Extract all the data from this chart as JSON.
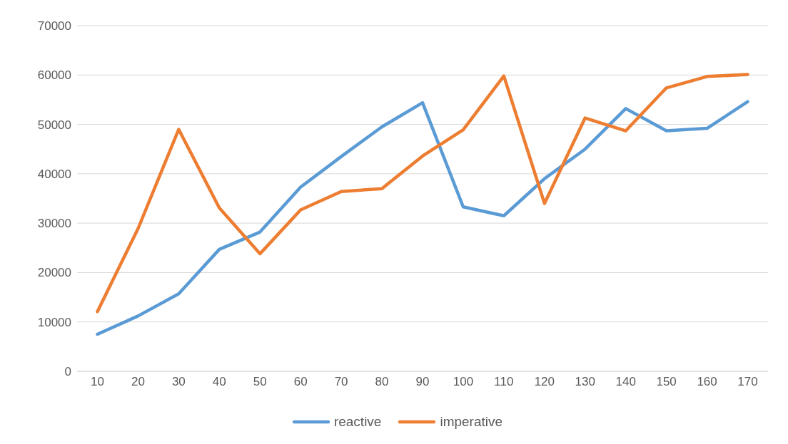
{
  "chart_data": {
    "type": "line",
    "categories": [
      "10",
      "20",
      "30",
      "40",
      "50",
      "60",
      "70",
      "80",
      "90",
      "100",
      "110",
      "120",
      "130",
      "140",
      "150",
      "160",
      "170"
    ],
    "series": [
      {
        "name": "reactive",
        "color": "#5b9bd5",
        "values": [
          7500,
          11200,
          15700,
          24700,
          28200,
          37300,
          43500,
          49500,
          54400,
          33300,
          31500,
          39000,
          45000,
          53200,
          48700,
          49200,
          54600
        ]
      },
      {
        "name": "imperative",
        "color": "#ed7d31",
        "values": [
          12100,
          28900,
          49000,
          33100,
          23800,
          32700,
          36400,
          37000,
          43600,
          48900,
          59800,
          34000,
          51300,
          48700,
          57400,
          59700,
          60100
        ]
      }
    ],
    "ylim": [
      0,
      70000
    ],
    "yticks": [
      0,
      10000,
      20000,
      30000,
      40000,
      50000,
      60000,
      70000
    ],
    "grid": "y",
    "legend": "bottom",
    "marker": "none",
    "line_style": "solid"
  }
}
